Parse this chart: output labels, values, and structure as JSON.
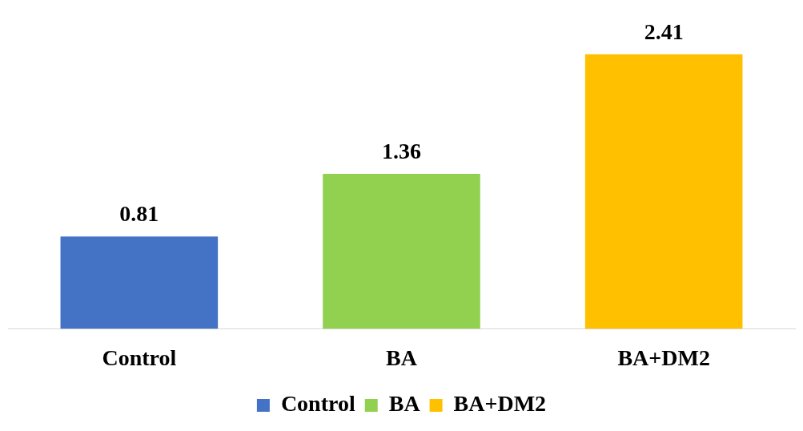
{
  "chart_data": {
    "type": "bar",
    "categories": [
      "Control",
      "BA",
      "BA+DM2"
    ],
    "series": [
      {
        "name": "Control",
        "color": "#4472c4",
        "values": [
          0.81,
          null,
          null
        ]
      },
      {
        "name": "BA",
        "color": "#92d050",
        "values": [
          null,
          1.36,
          null
        ]
      },
      {
        "name": "BA+DM2",
        "color": "#ffc000",
        "values": [
          null,
          null,
          2.41
        ]
      }
    ],
    "data_labels": true,
    "legend": "bottom"
  }
}
